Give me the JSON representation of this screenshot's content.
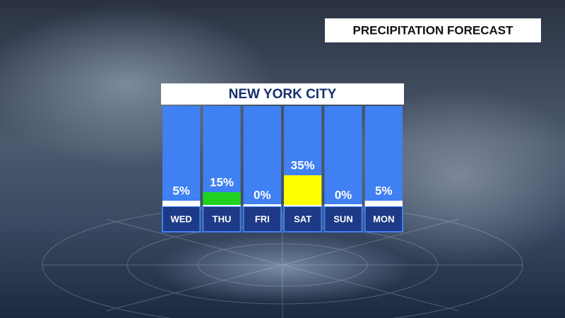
{
  "chart_data": {
    "type": "bar",
    "title": "PRECIPITATION FORECAST",
    "subtitle": "NEW YORK CITY",
    "categories": [
      "WED",
      "THU",
      "FRI",
      "SAT",
      "SUN",
      "MON"
    ],
    "values": [
      5,
      15,
      0,
      35,
      0,
      5
    ],
    "value_labels": [
      "5%",
      "15%",
      "0%",
      "35%",
      "0%",
      "5%"
    ],
    "colors": [
      "#ffffff",
      "#1ed21e",
      "#ffffff",
      "#ffff00",
      "#ffffff",
      "#ffffff"
    ]
  }
}
